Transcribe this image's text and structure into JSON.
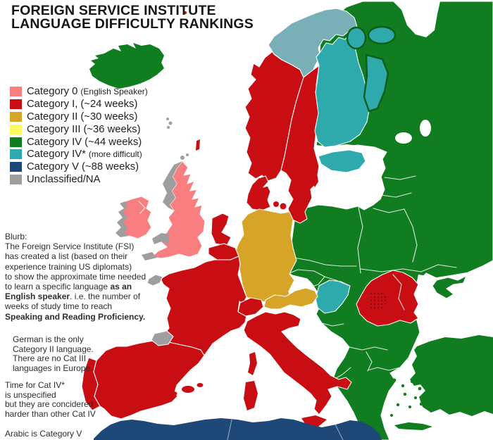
{
  "title": {
    "line1": "FOREIGN SERVICE INSTITUTE",
    "line2": "LANGUAGE DIFFICULTY RANKINGS"
  },
  "legend": {
    "items": [
      {
        "main": "Category 0",
        "note": "(English Speaker)",
        "small": true,
        "color": "cat0"
      },
      {
        "main": "Category I,",
        "note": "(~24 weeks)",
        "small": false,
        "color": "cat1"
      },
      {
        "main": "Category II",
        "note": "(~30 weeks)",
        "small": false,
        "color": "cat2"
      },
      {
        "main": "Category III",
        "note": "(~36 weeks)",
        "small": false,
        "color": "cat3"
      },
      {
        "main": "Category IV",
        "note": "(~44 weeks)",
        "small": false,
        "color": "cat4"
      },
      {
        "main": "Category IV*",
        "note": "(more difficult)",
        "small": true,
        "color": "cat4star"
      },
      {
        "main": "Category V",
        "note": "(~88 weeks)",
        "small": false,
        "color": "cat5"
      },
      {
        "main": "Unclassified/NA",
        "note": "",
        "small": false,
        "color": "gray"
      }
    ]
  },
  "blurb": {
    "segments": [
      {
        "text": "Blurb:\nThe Foreign Service Institute (FSI)\nhas created a list (based on their\nexperience training US diplomats)\nto show the approximate time needed\nto learn a specific language ",
        "bold": false
      },
      {
        "text": "as an\nEnglish speaker",
        "bold": true
      },
      {
        "text": ". i.e. the number of\nweeks of study time to reach\n",
        "bold": false
      },
      {
        "text": "Speaking and Reading Proficiency.",
        "bold": true
      }
    ]
  },
  "notes": {
    "german": "German is the only\nCategory II language.\nThere are no Cat III\nlanguages in Europe.",
    "cat4": "Time for Cat IV*\nis unspecified\nbut they are concidered\nharder than other Cat IV",
    "arabic": "Arabic is Category V"
  },
  "colors": {
    "cat0": "#F87E80",
    "cat1": "#C80E13",
    "cat2": "#D6A427",
    "cat3": "#FBFB60",
    "cat4": "#0F7D20",
    "cat4star": "#2EAAAC",
    "cat5": "#1D4878",
    "gray": "#9E9E9E",
    "lapland": "#79AFB6",
    "karelia_outline": "#0A5E16",
    "dots": "#7C0A0F"
  },
  "map_regions": [
    {
      "name": "united-kingdom",
      "category": "0"
    },
    {
      "name": "ireland",
      "category": "0"
    },
    {
      "name": "scottish-highlands",
      "category": "unclassified"
    },
    {
      "name": "wales",
      "category": "unclassified"
    },
    {
      "name": "cornwall",
      "category": "unclassified"
    },
    {
      "name": "west-ireland",
      "category": "unclassified"
    },
    {
      "name": "brittany",
      "category": "unclassified"
    },
    {
      "name": "basque-country",
      "category": "unclassified"
    },
    {
      "name": "faroe-islands",
      "category": "unclassified"
    },
    {
      "name": "norway",
      "category": "I"
    },
    {
      "name": "sweden",
      "category": "I"
    },
    {
      "name": "denmark",
      "category": "I"
    },
    {
      "name": "netherlands",
      "category": "I"
    },
    {
      "name": "belgium",
      "category": "I"
    },
    {
      "name": "france",
      "category": "I"
    },
    {
      "name": "switzerland",
      "category": "I"
    },
    {
      "name": "spain",
      "category": "I"
    },
    {
      "name": "portugal",
      "category": "I"
    },
    {
      "name": "italy",
      "category": "I"
    },
    {
      "name": "romania-moldova",
      "category": "I"
    },
    {
      "name": "germany",
      "category": "II"
    },
    {
      "name": "austria",
      "category": "II"
    },
    {
      "name": "iceland",
      "category": "IV"
    },
    {
      "name": "poland-baltics-belarus-ukraine-russia",
      "category": "IV"
    },
    {
      "name": "balkans-greece",
      "category": "IV"
    },
    {
      "name": "turkey",
      "category": "IV"
    },
    {
      "name": "finland",
      "category": "IV*"
    },
    {
      "name": "estonia",
      "category": "IV*"
    },
    {
      "name": "hungary",
      "category": "IV*"
    },
    {
      "name": "karelia",
      "category": "IV*"
    },
    {
      "name": "lapland",
      "category": "IV*"
    },
    {
      "name": "north-africa-arabic",
      "category": "V"
    }
  ]
}
